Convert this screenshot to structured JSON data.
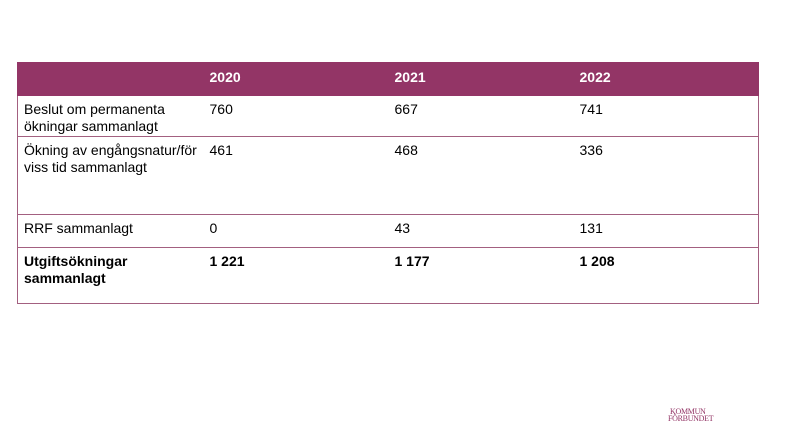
{
  "table": {
    "headers": [
      "",
      "2020",
      "2021",
      "2022"
    ],
    "rows": [
      {
        "label": "Beslut om permanenta ökningar sammanlagt",
        "values": [
          "760",
          "667",
          "741"
        ]
      },
      {
        "label": "Ökning av engångsnatur/för viss tid sammanlagt",
        "values": [
          "461",
          "468",
          "336"
        ]
      },
      {
        "label": "RRF sammanlagt",
        "values": [
          "0",
          "43",
          "131"
        ]
      },
      {
        "label": "Utgiftsökningar sammanlagt",
        "values": [
          "1 221",
          "1 177",
          "1 208"
        ]
      }
    ]
  },
  "logo": {
    "line1": "KOMMUN",
    "line2": "FÖRBUNDET",
    "color": "#933566"
  },
  "colors": {
    "header_bg": "#933566",
    "header_text": "#ffffff",
    "border": "#a36080"
  }
}
